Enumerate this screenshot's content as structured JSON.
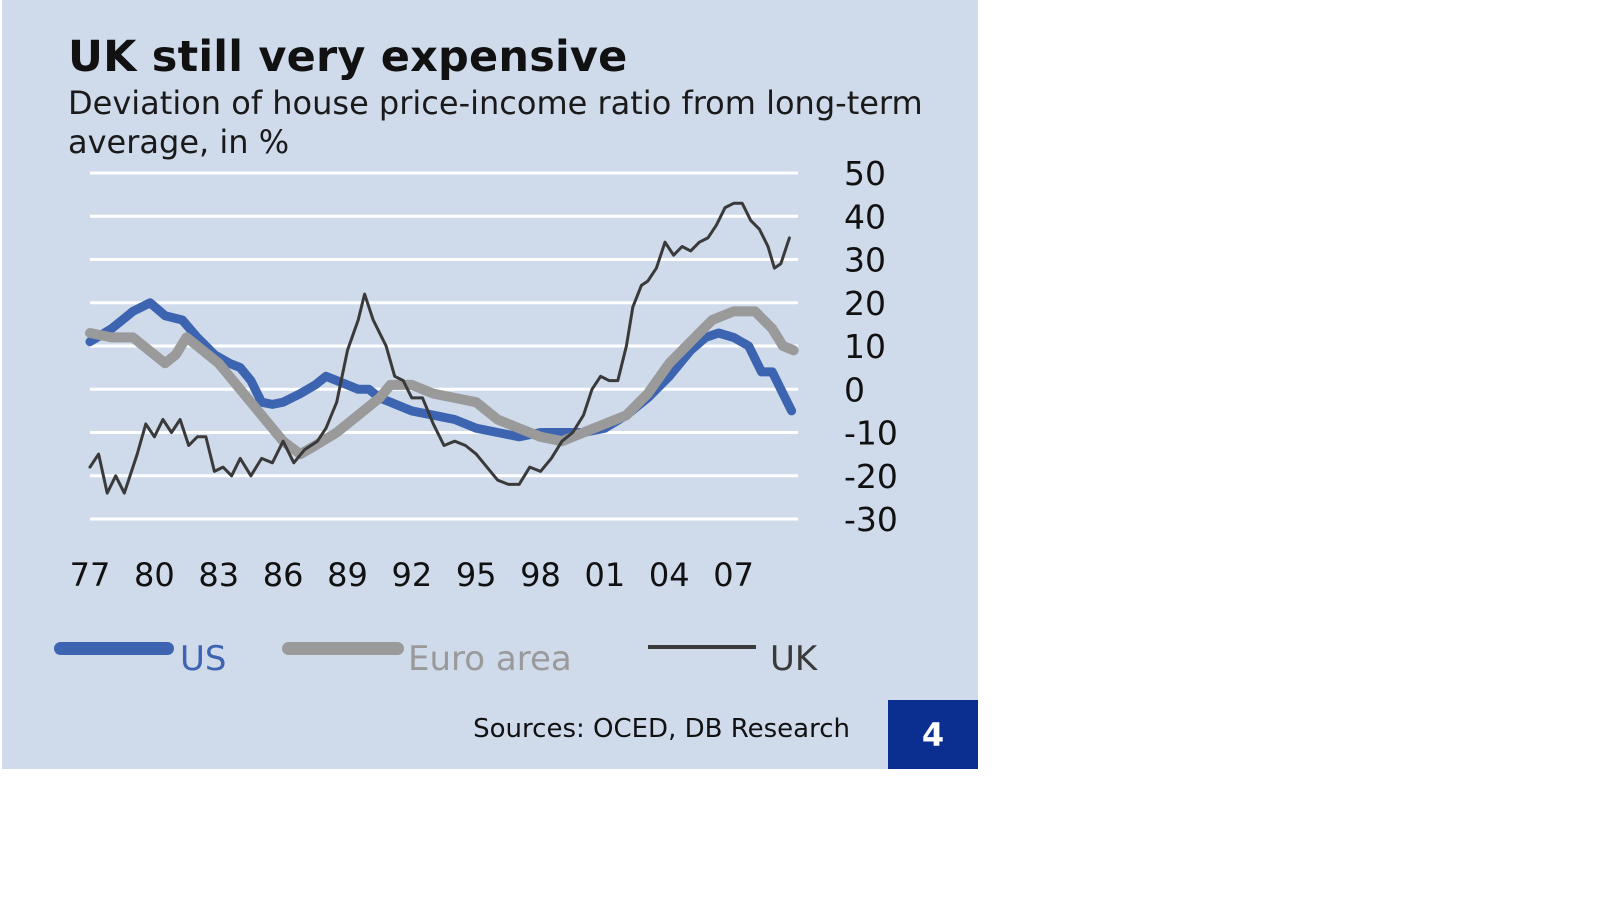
{
  "header": {
    "title": "UK still very expensive",
    "subtitle": "Deviation of house price-income ratio from long-term average, in %"
  },
  "footer": {
    "source": "Sources: OCED, DB Research",
    "page_number": "4"
  },
  "colors": {
    "background": "#cfdaeb",
    "gridline": "#ffffff",
    "us": "#3d64b0",
    "euro_area": "#9a9a9a",
    "uk": "#3a3a3a",
    "badge": "#0a2f91"
  },
  "chart_data": {
    "type": "line",
    "title": "UK still very expensive",
    "subtitle": "Deviation of house price-income ratio from long-term average, in %",
    "xlabel": "",
    "ylabel": "",
    "xlim": [
      1977,
      2010
    ],
    "ylim": [
      -30,
      50
    ],
    "y_ticks": [
      50,
      40,
      30,
      20,
      10,
      0,
      -10,
      -20,
      -30
    ],
    "x_ticks": [
      1977,
      1980,
      1983,
      1986,
      1989,
      1992,
      1995,
      1998,
      2001,
      2004,
      2007
    ],
    "x_tick_labels": [
      "77",
      "80",
      "83",
      "86",
      "89",
      "92",
      "95",
      "98",
      "01",
      "04",
      "07"
    ],
    "y_axis_position": "right",
    "grid": true,
    "legend": "bottom",
    "series": [
      {
        "name": "US",
        "color": "#3d64b0",
        "points": [
          [
            1977,
            11
          ],
          [
            1978,
            14
          ],
          [
            1979,
            18
          ],
          [
            1979.8,
            20
          ],
          [
            1980.5,
            17
          ],
          [
            1981.3,
            16
          ],
          [
            1982,
            12
          ],
          [
            1982.8,
            8
          ],
          [
            1983.5,
            6
          ],
          [
            1984,
            5
          ],
          [
            1984.5,
            2
          ],
          [
            1985,
            -3
          ],
          [
            1985.5,
            -3.5
          ],
          [
            1986,
            -3
          ],
          [
            1986.8,
            -1
          ],
          [
            1987.5,
            1
          ],
          [
            1988,
            3
          ],
          [
            1988.5,
            2
          ],
          [
            1989,
            1
          ],
          [
            1989.5,
            0
          ],
          [
            1990,
            0
          ],
          [
            1990.5,
            -2
          ],
          [
            1991,
            -3
          ],
          [
            1992,
            -5
          ],
          [
            1993,
            -6
          ],
          [
            1994,
            -7
          ],
          [
            1995,
            -9
          ],
          [
            1996,
            -10
          ],
          [
            1997,
            -11
          ],
          [
            1998,
            -10
          ],
          [
            1999,
            -10
          ],
          [
            2000,
            -10
          ],
          [
            2001,
            -9
          ],
          [
            2002,
            -6
          ],
          [
            2003,
            -2
          ],
          [
            2004,
            3
          ],
          [
            2005,
            9
          ],
          [
            2005.7,
            12
          ],
          [
            2006.3,
            13
          ],
          [
            2007,
            12
          ],
          [
            2007.7,
            10
          ],
          [
            2008.3,
            4
          ],
          [
            2008.8,
            4
          ],
          [
            2009.3,
            -1
          ],
          [
            2009.7,
            -5
          ]
        ]
      },
      {
        "name": "Euro area",
        "color": "#9a9a9a",
        "points": [
          [
            1977,
            13
          ],
          [
            1978,
            12
          ],
          [
            1979,
            12
          ],
          [
            1979.5,
            10
          ],
          [
            1980,
            8
          ],
          [
            1980.5,
            6
          ],
          [
            1981,
            8
          ],
          [
            1981.5,
            12
          ],
          [
            1982,
            10
          ],
          [
            1983,
            6
          ],
          [
            1984,
            0
          ],
          [
            1985,
            -6
          ],
          [
            1986,
            -12
          ],
          [
            1986.8,
            -15
          ],
          [
            1987.5,
            -13
          ],
          [
            1988.5,
            -10
          ],
          [
            1989.5,
            -6
          ],
          [
            1990.5,
            -2
          ],
          [
            1991,
            1
          ],
          [
            1992,
            1
          ],
          [
            1993,
            -1
          ],
          [
            1994,
            -2
          ],
          [
            1995,
            -3
          ],
          [
            1996,
            -7
          ],
          [
            1997,
            -9
          ],
          [
            1998,
            -11
          ],
          [
            1999,
            -12
          ],
          [
            2000,
            -10
          ],
          [
            2001,
            -8
          ],
          [
            2002,
            -6
          ],
          [
            2003,
            -1
          ],
          [
            2004,
            6
          ],
          [
            2005,
            11
          ],
          [
            2006,
            16
          ],
          [
            2007,
            18
          ],
          [
            2008,
            18
          ],
          [
            2008.8,
            14
          ],
          [
            2009.3,
            10
          ],
          [
            2009.8,
            9
          ]
        ]
      },
      {
        "name": "UK",
        "color": "#3a3a3a",
        "points": [
          [
            1977,
            -18
          ],
          [
            1977.4,
            -15
          ],
          [
            1977.8,
            -24
          ],
          [
            1978.2,
            -20
          ],
          [
            1978.6,
            -24
          ],
          [
            1979.2,
            -15
          ],
          [
            1979.6,
            -8
          ],
          [
            1980,
            -11
          ],
          [
            1980.4,
            -7
          ],
          [
            1980.8,
            -10
          ],
          [
            1981.2,
            -7
          ],
          [
            1981.6,
            -13
          ],
          [
            1982,
            -11
          ],
          [
            1982.4,
            -11
          ],
          [
            1982.8,
            -19
          ],
          [
            1983.2,
            -18
          ],
          [
            1983.6,
            -20
          ],
          [
            1984,
            -16
          ],
          [
            1984.5,
            -20
          ],
          [
            1985,
            -16
          ],
          [
            1985.5,
            -17
          ],
          [
            1986,
            -12
          ],
          [
            1986.5,
            -17
          ],
          [
            1987,
            -14
          ],
          [
            1987.6,
            -12
          ],
          [
            1988,
            -9
          ],
          [
            1988.5,
            -3
          ],
          [
            1989,
            9
          ],
          [
            1989.5,
            16
          ],
          [
            1989.8,
            22
          ],
          [
            1990.2,
            16
          ],
          [
            1990.8,
            10
          ],
          [
            1991.2,
            3
          ],
          [
            1991.6,
            2
          ],
          [
            1992,
            -2
          ],
          [
            1992.5,
            -2
          ],
          [
            1993,
            -8
          ],
          [
            1993.5,
            -13
          ],
          [
            1994,
            -12
          ],
          [
            1994.5,
            -13
          ],
          [
            1995,
            -15
          ],
          [
            1995.5,
            -18
          ],
          [
            1996,
            -21
          ],
          [
            1996.5,
            -22
          ],
          [
            1997,
            -22
          ],
          [
            1997.5,
            -18
          ],
          [
            1998,
            -19
          ],
          [
            1998.5,
            -16
          ],
          [
            1999,
            -12
          ],
          [
            1999.5,
            -10
          ],
          [
            2000,
            -6
          ],
          [
            2000.4,
            0
          ],
          [
            2000.8,
            3
          ],
          [
            2001.2,
            2
          ],
          [
            2001.6,
            2
          ],
          [
            2002,
            10
          ],
          [
            2002.3,
            19
          ],
          [
            2002.7,
            24
          ],
          [
            2003,
            25
          ],
          [
            2003.4,
            28
          ],
          [
            2003.8,
            34
          ],
          [
            2004.2,
            31
          ],
          [
            2004.6,
            33
          ],
          [
            2005,
            32
          ],
          [
            2005.4,
            34
          ],
          [
            2005.8,
            35
          ],
          [
            2006.2,
            38
          ],
          [
            2006.6,
            42
          ],
          [
            2007,
            43
          ],
          [
            2007.4,
            43
          ],
          [
            2007.8,
            39
          ],
          [
            2008.2,
            37
          ],
          [
            2008.6,
            33
          ],
          [
            2008.9,
            28
          ],
          [
            2009.2,
            29
          ],
          [
            2009.6,
            35
          ]
        ]
      }
    ]
  }
}
